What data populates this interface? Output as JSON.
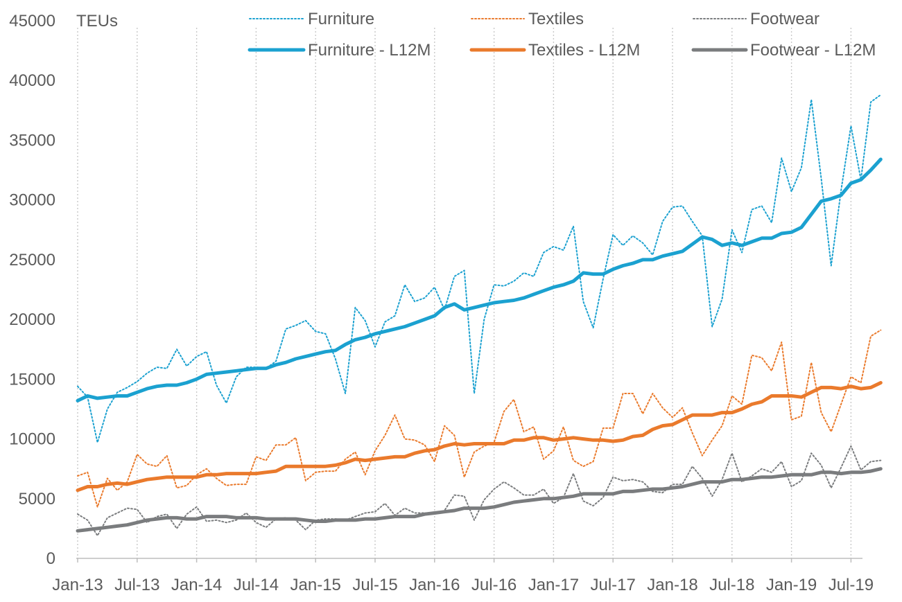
{
  "chart_data": {
    "type": "line",
    "ylabel": "TEUs",
    "ylim": [
      0,
      45000
    ],
    "yticks": [
      0,
      5000,
      10000,
      15000,
      20000,
      25000,
      30000,
      35000,
      40000,
      45000
    ],
    "xtick_labels": [
      "Jan-13",
      "Jul-13",
      "Jan-14",
      "Jul-14",
      "Jan-15",
      "Jul-15",
      "Jan-16",
      "Jul-16",
      "Jan-17",
      "Jul-17",
      "Jan-18",
      "Jul-18",
      "Jan-19",
      "Jul-19"
    ],
    "x_start": "2013-01",
    "x_end": "2019-09",
    "grid": "vertical dotted at each Jan/Jul",
    "legend_position": "top",
    "series": [
      {
        "name": "Furniture",
        "style": "dotted",
        "color": "#1ba1d0",
        "values": [
          14400,
          13500,
          9700,
          12500,
          13900,
          14300,
          14800,
          15500,
          16000,
          15900,
          17500,
          16100,
          16900,
          17300,
          14500,
          13000,
          15200,
          16000,
          16000,
          15900,
          16500,
          19200,
          19500,
          19900,
          19000,
          18800,
          16700,
          13800,
          21000,
          19900,
          17700,
          19800,
          20300,
          22900,
          21500,
          21800,
          22700,
          20800,
          23600,
          24100,
          13800,
          20000,
          22900,
          22800,
          23200,
          23900,
          23600,
          25600,
          26100,
          25800,
          27800,
          21500,
          19300,
          23400,
          27100,
          26200,
          27000,
          26400,
          25400,
          28200,
          29400,
          29500,
          28200,
          27000,
          19400,
          21700,
          27500,
          25600,
          29200,
          29500,
          28100,
          33500,
          30700,
          32700,
          38400,
          31800,
          24500,
          30800,
          36200,
          31700,
          38200,
          38800
        ]
      },
      {
        "name": "Textiles",
        "style": "dotted",
        "color": "#ea7a2c",
        "values": [
          6900,
          7200,
          4300,
          6700,
          5700,
          6400,
          8700,
          7900,
          7700,
          8600,
          5900,
          6100,
          7000,
          7500,
          6700,
          6100,
          6200,
          6200,
          8500,
          8200,
          9500,
          9500,
          10100,
          6500,
          7200,
          7300,
          7300,
          8300,
          8900,
          7000,
          9000,
          10300,
          12000,
          10000,
          9900,
          9500,
          8100,
          11100,
          10300,
          6800,
          8900,
          9400,
          9700,
          12300,
          13300,
          10600,
          11000,
          8300,
          9000,
          11000,
          8200,
          7700,
          8100,
          10900,
          10900,
          13800,
          13800,
          12100,
          13800,
          12600,
          11800,
          12600,
          10500,
          8600,
          9900,
          11100,
          13600,
          12900,
          17000,
          16800,
          15700,
          18100,
          11600,
          11900,
          16400,
          12200,
          10600,
          12900,
          15200,
          14700,
          18600,
          19100
        ]
      },
      {
        "name": "Footwear",
        "style": "dotted",
        "color": "#7a7c7e",
        "values": [
          3700,
          3200,
          1900,
          3400,
          3800,
          4200,
          4100,
          3000,
          3500,
          3700,
          2500,
          3700,
          4300,
          3100,
          3200,
          3000,
          3200,
          3800,
          3000,
          2600,
          3300,
          3400,
          3200,
          2400,
          3200,
          3300,
          3300,
          3200,
          3500,
          3800,
          3900,
          4600,
          3600,
          4200,
          3800,
          3800,
          3700,
          4000,
          5300,
          5200,
          3200,
          4900,
          5800,
          6400,
          5900,
          5300,
          5300,
          5800,
          4600,
          5100,
          7100,
          4800,
          4400,
          5100,
          6800,
          6500,
          6600,
          6400,
          5600,
          5500,
          6200,
          6200,
          7700,
          6700,
          5200,
          6600,
          8800,
          6400,
          6900,
          7500,
          7200,
          8100,
          6000,
          6500,
          8800,
          7800,
          5900,
          7600,
          9400,
          7400,
          8100,
          8200
        ]
      },
      {
        "name": "Furniture - L12M",
        "style": "solid",
        "color": "#1ba1d0",
        "values": [
          13200,
          13600,
          13400,
          13500,
          13600,
          13600,
          13900,
          14200,
          14400,
          14500,
          14500,
          14700,
          15000,
          15400,
          15500,
          15600,
          15700,
          15800,
          15900,
          15900,
          16200,
          16400,
          16700,
          16900,
          17100,
          17300,
          17400,
          17900,
          18300,
          18500,
          18800,
          19000,
          19200,
          19400,
          19700,
          20000,
          20300,
          21000,
          21300,
          20800,
          21000,
          21200,
          21400,
          21500,
          21600,
          21800,
          22100,
          22400,
          22700,
          22900,
          23200,
          23900,
          23800,
          23800,
          24200,
          24500,
          24700,
          25000,
          25000,
          25300,
          25500,
          25700,
          26300,
          26900,
          26700,
          26200,
          26400,
          26200,
          26500,
          26800,
          26800,
          27200,
          27300,
          27700,
          28800,
          29900,
          30100,
          30400,
          31400,
          31700,
          32500,
          33400
        ]
      },
      {
        "name": "Textiles - L12M",
        "style": "solid",
        "color": "#ea7a2c",
        "values": [
          5700,
          6000,
          6000,
          6200,
          6300,
          6200,
          6400,
          6600,
          6700,
          6800,
          6800,
          6800,
          6800,
          7000,
          7000,
          7100,
          7100,
          7100,
          7100,
          7200,
          7300,
          7700,
          7700,
          7700,
          7700,
          7700,
          7800,
          8000,
          8300,
          8200,
          8300,
          8400,
          8500,
          8500,
          8800,
          9000,
          9100,
          9400,
          9600,
          9500,
          9600,
          9600,
          9600,
          9600,
          9900,
          9900,
          10100,
          10100,
          9900,
          10000,
          10100,
          10000,
          9900,
          9900,
          9800,
          9900,
          10200,
          10300,
          10800,
          11100,
          11200,
          11600,
          12000,
          12000,
          12000,
          12200,
          12200,
          12500,
          12900,
          13100,
          13600,
          13600,
          13600,
          13500,
          13900,
          14300,
          14300,
          14200,
          14400,
          14200,
          14300,
          14700
        ]
      },
      {
        "name": "Footwear - L12M",
        "style": "solid",
        "color": "#7a7c7e",
        "values": [
          2300,
          2400,
          2500,
          2600,
          2700,
          2800,
          3000,
          3200,
          3300,
          3400,
          3400,
          3300,
          3300,
          3500,
          3500,
          3500,
          3400,
          3400,
          3400,
          3300,
          3300,
          3300,
          3300,
          3200,
          3100,
          3100,
          3200,
          3200,
          3200,
          3300,
          3300,
          3400,
          3500,
          3500,
          3500,
          3700,
          3800,
          3900,
          4000,
          4200,
          4200,
          4200,
          4300,
          4500,
          4700,
          4800,
          4900,
          5000,
          5000,
          5100,
          5200,
          5400,
          5400,
          5400,
          5400,
          5600,
          5600,
          5700,
          5800,
          5800,
          5900,
          6000,
          6200,
          6400,
          6400,
          6400,
          6600,
          6600,
          6700,
          6800,
          6800,
          6900,
          7000,
          7000,
          7000,
          7200,
          7200,
          7100,
          7200,
          7200,
          7300,
          7500
        ]
      }
    ]
  }
}
